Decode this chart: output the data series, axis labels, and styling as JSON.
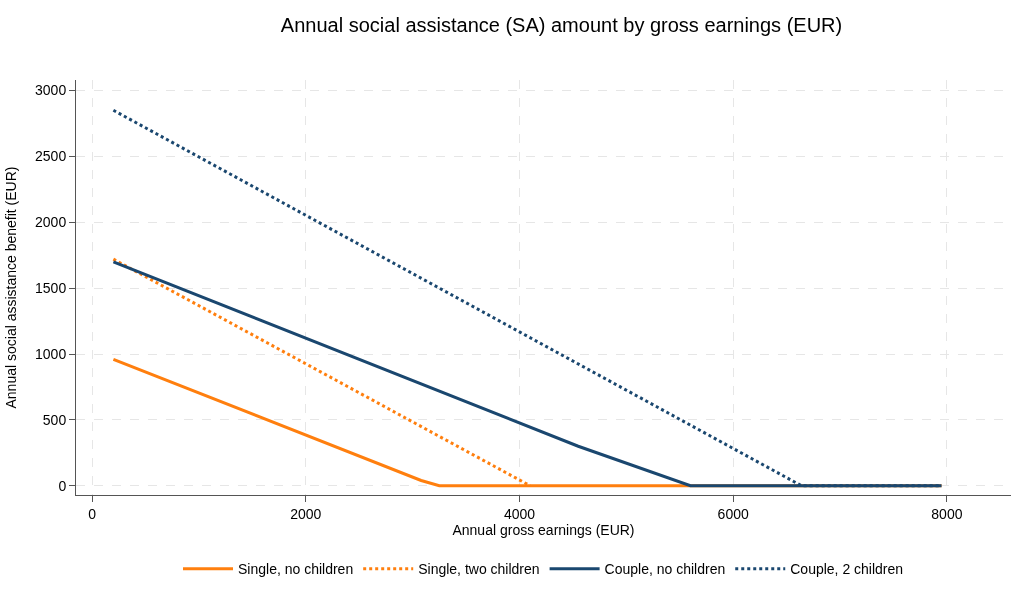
{
  "chart_data": {
    "type": "line",
    "title": "Annual social assistance (SA) amount by gross earnings (EUR)",
    "xlabel": "Annual gross earnings (EUR)",
    "ylabel": "Annual social assistance benefit (EUR)",
    "xlim": [
      -150,
      8600
    ],
    "ylim": [
      -70,
      3080
    ],
    "xticks": [
      0,
      2000,
      4000,
      6000,
      8000
    ],
    "yticks": [
      0,
      500,
      1000,
      1500,
      2000,
      2500,
      3000
    ],
    "grid": true,
    "legend": "bottom",
    "marker": "none",
    "series": [
      {
        "name": "Single, no children",
        "color": "#ff7f0e",
        "line_style": "solid",
        "x": [
          200,
          3080,
          3250,
          7950
        ],
        "values": [
          960,
          40,
          0,
          0
        ]
      },
      {
        "name": "Single, two children",
        "color": "#ff7f0e",
        "line_style": "dotted",
        "x": [
          200,
          4100
        ],
        "values": [
          1720,
          0
        ]
      },
      {
        "name": "Couple, no children",
        "color": "#1a476f",
        "line_style": "solid",
        "x": [
          200,
          4550,
          5600,
          7950
        ],
        "values": [
          1700,
          300,
          0,
          0
        ]
      },
      {
        "name": "Couple, 2 children",
        "color": "#1a476f",
        "line_style": "dotted",
        "x": [
          200,
          6640,
          7950
        ],
        "values": [
          2850,
          0,
          0
        ]
      }
    ]
  }
}
